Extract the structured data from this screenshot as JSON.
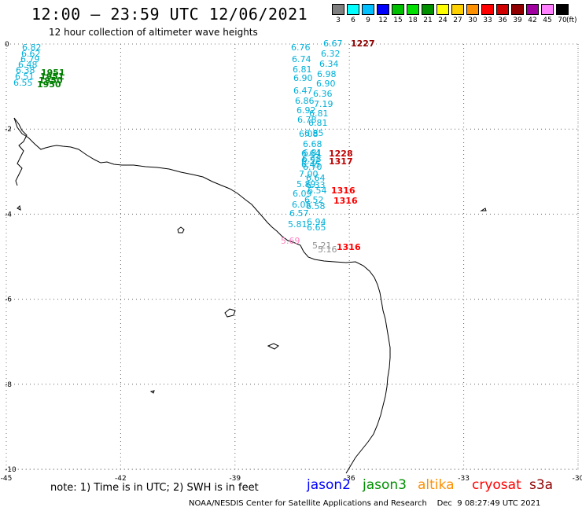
{
  "header": {
    "title": "12:00 — 23:59 UTC 12/06/2021",
    "subtitle": "12 hour collection of altimeter wave heights"
  },
  "colorbar": {
    "unit": "(ft)",
    "bins": [
      {
        "label": "3",
        "color": "#7f7f7f"
      },
      {
        "label": "6",
        "color": "#00ffff"
      },
      {
        "label": "9",
        "color": "#00bfff"
      },
      {
        "label": "12",
        "color": "#0000ff"
      },
      {
        "label": "15",
        "color": "#00bf00"
      },
      {
        "label": "18",
        "color": "#00e000"
      },
      {
        "label": "21",
        "color": "#009000"
      },
      {
        "label": "24",
        "color": "#ffff00"
      },
      {
        "label": "27",
        "color": "#ffd000"
      },
      {
        "label": "30",
        "color": "#ff9000"
      },
      {
        "label": "33",
        "color": "#ff0000"
      },
      {
        "label": "36",
        "color": "#d00000"
      },
      {
        "label": "39",
        "color": "#900000"
      },
      {
        "label": "42",
        "color": "#a000a0"
      },
      {
        "label": "45",
        "color": "#ff80ff"
      },
      {
        "label": "70",
        "color": "#000000"
      }
    ]
  },
  "axes": {
    "lon_ticks": [
      "-45",
      "-42",
      "-39",
      "-36",
      "-33",
      "-30"
    ],
    "lat_ticks": [
      "0",
      "-2",
      "-4",
      "-6",
      "-8",
      "-10"
    ],
    "lon_range": [
      -45,
      -30
    ],
    "lat_range": [
      -10,
      0
    ]
  },
  "observations": {
    "cyan_column_a": [
      "6.76",
      "6.74",
      "6.81",
      "6.90",
      "6.47",
      "6.86",
      "6.92",
      "6.78",
      "6.08",
      "6.68",
      "6.64",
      "6.52",
      "6.70",
      "7.00",
      "5.89",
      "6.09",
      "6.05",
      "6.57",
      "5.81"
    ],
    "cyan_column_b": [
      "6.67",
      "6.32",
      "6.34",
      "6.98",
      "6.90",
      "6.36",
      "7.19",
      "6.81",
      "6.81",
      "6.85",
      "6.81",
      "6.48",
      "6.45",
      "6.64",
      "6.33",
      "6.54",
      "6.52",
      "6.58",
      "6.94",
      "6.65"
    ],
    "cyan_west": [
      "6.82",
      "6.62",
      "6.79",
      "6.48",
      "6.38",
      "6.51",
      "6.55"
    ],
    "green_times": [
      "1951",
      "1951",
      "1950",
      "1950"
    ],
    "pink_values": [
      "5.69",
      "5.21",
      "5.16"
    ],
    "red_times": [
      "1227",
      "1228",
      "1317",
      "1316",
      "1316",
      "1316"
    ]
  },
  "footer": {
    "note": "note:  1) Time is in UTC;  2) SWH is in feet",
    "satellites": [
      {
        "name": "jason2",
        "color": "#0000ff"
      },
      {
        "name": "jason3",
        "color": "#009000"
      },
      {
        "name": "altika",
        "color": "#ff9000"
      },
      {
        "name": "cryosat",
        "color": "#ff0000"
      },
      {
        "name": "s3a",
        "color": "#900000"
      }
    ],
    "credit": "NOAA/NESDIS Center for Satellite Applications and Research    Dec  9 08:27:49 UTC 2021"
  }
}
